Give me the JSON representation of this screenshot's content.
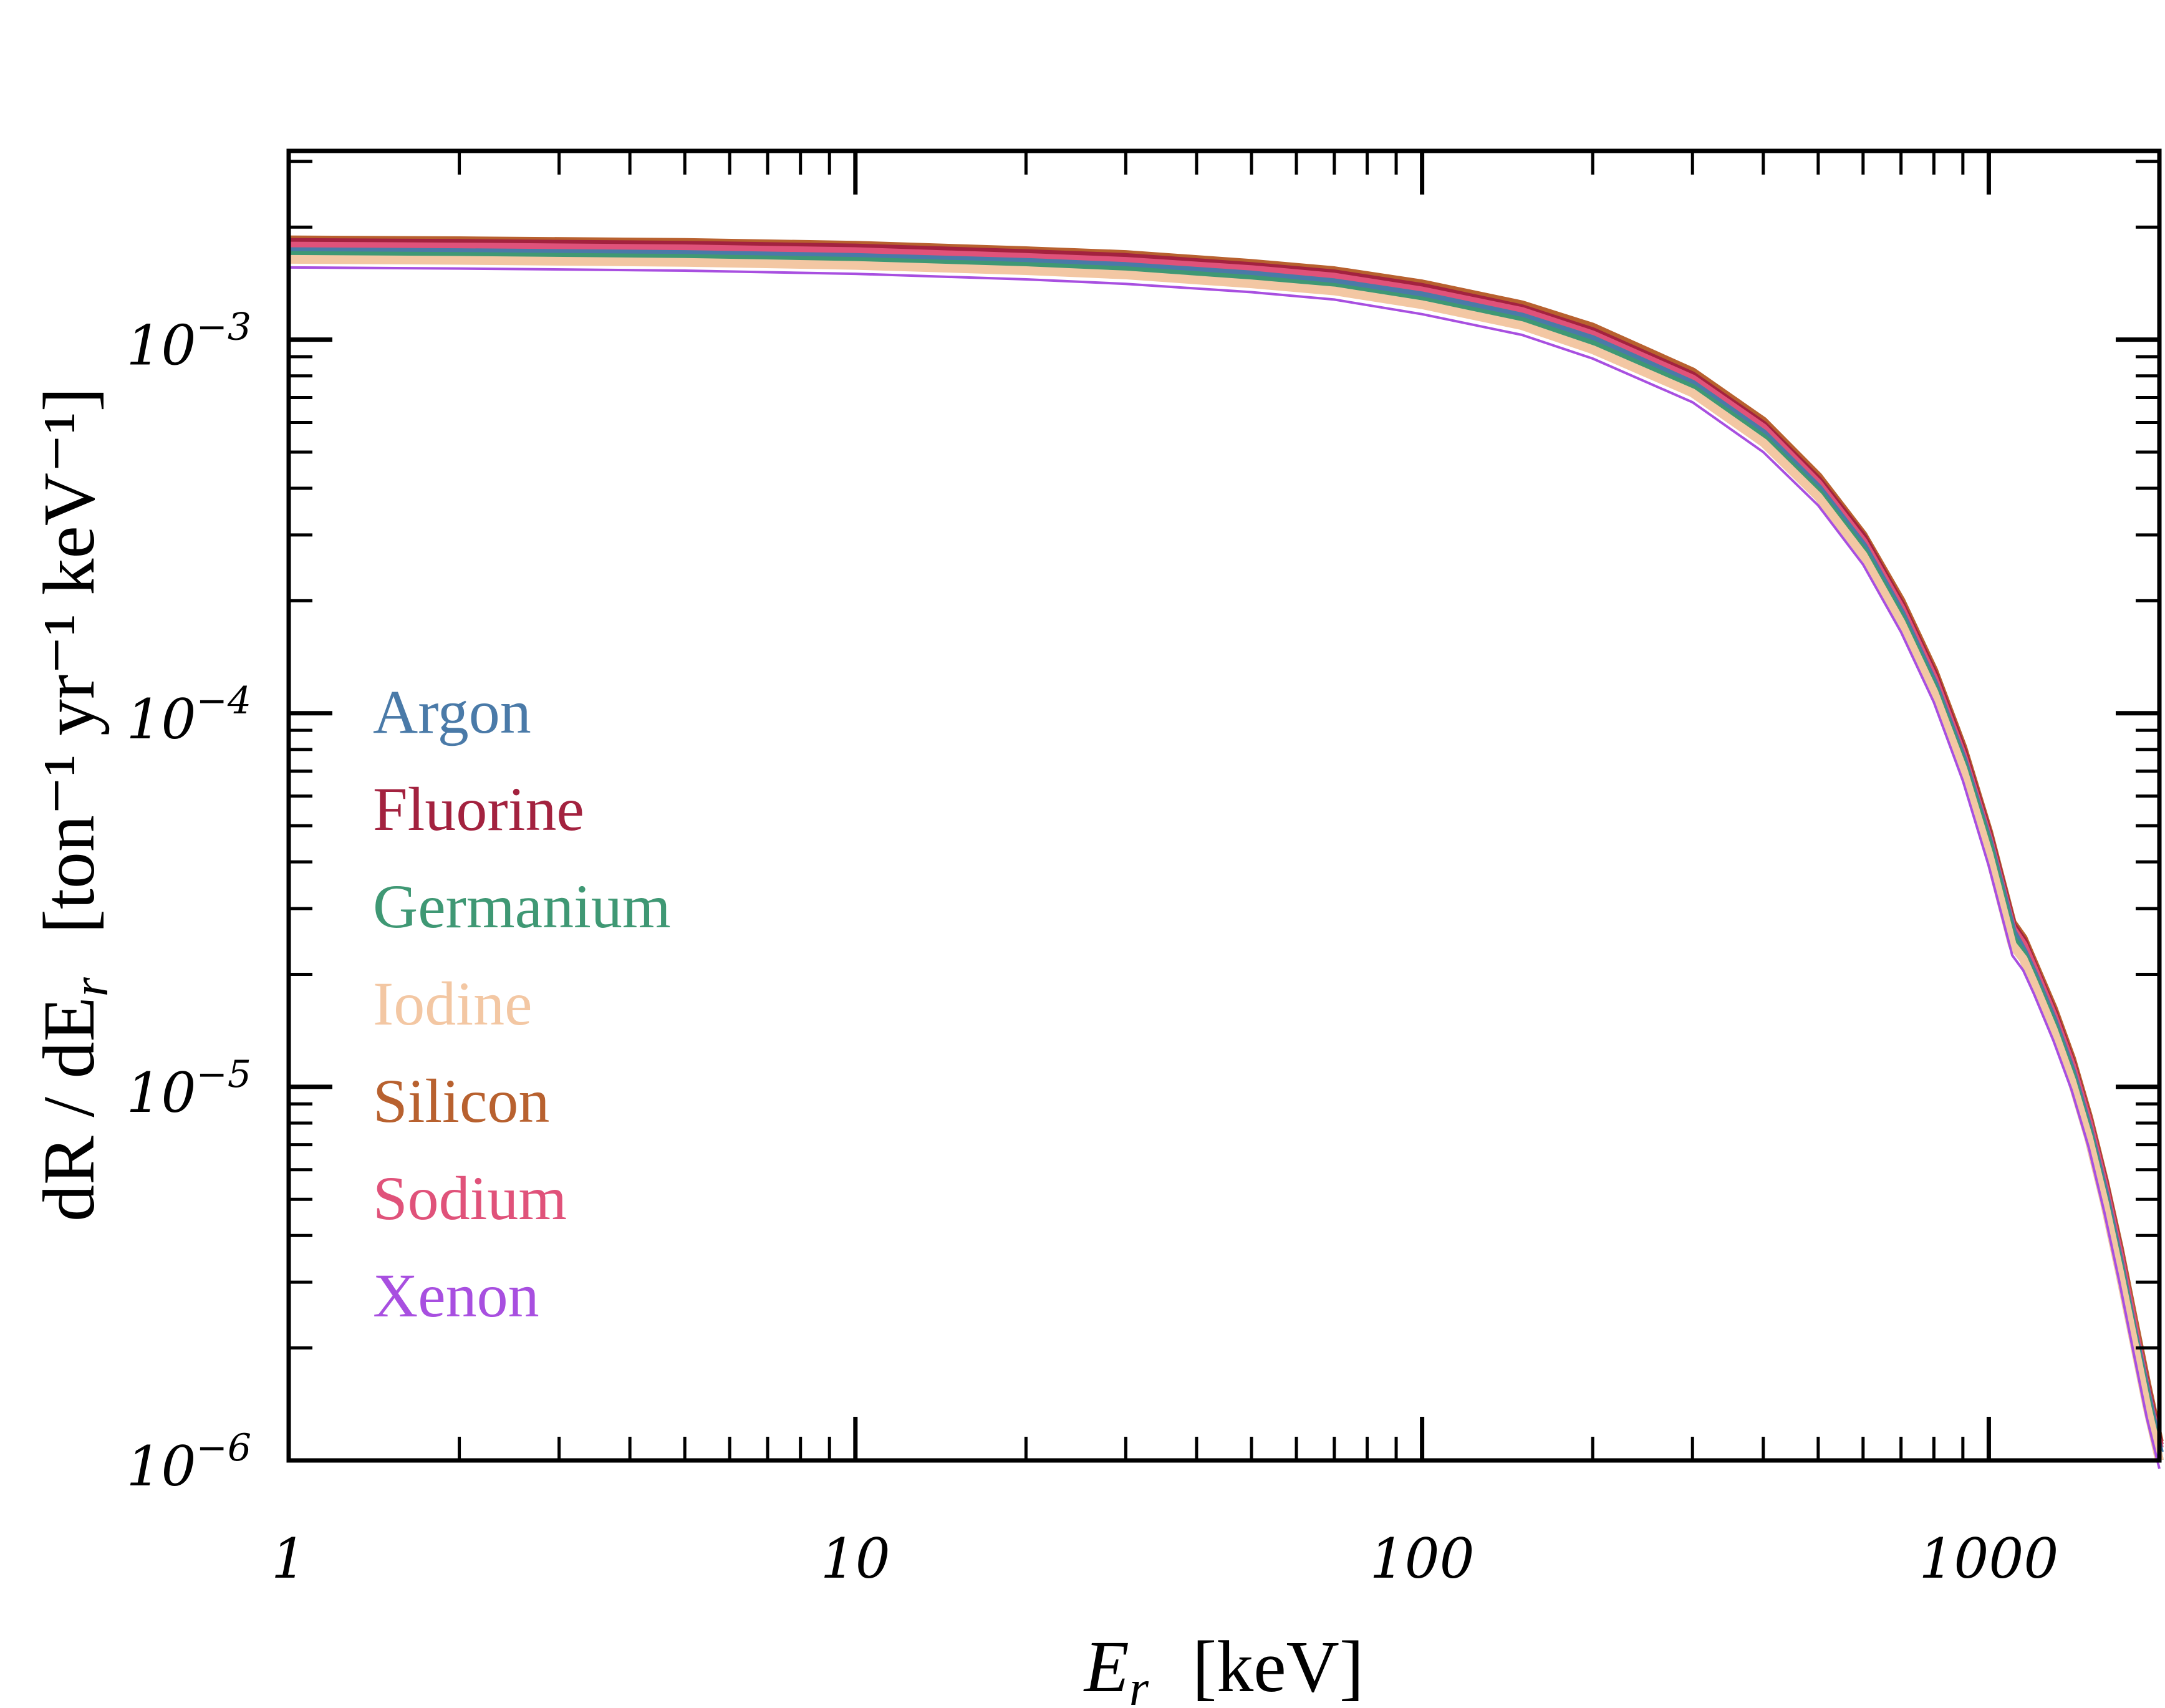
{
  "chart_data": {
    "type": "line",
    "title": "",
    "xlabel": "E_r  [keV]",
    "xlabel_main": "E",
    "xlabel_sub": "r",
    "xlabel_unit": "[keV]",
    "ylabel_left": "dR / dE",
    "ylabel_sub": "r",
    "ylabel_unit": "[ton⁻¹ yr⁻¹ keV⁻¹]",
    "xscale": "log",
    "yscale": "log",
    "xlim": [
      1,
      2000
    ],
    "ylim": [
      1e-06,
      0.0032
    ],
    "x_ticks": [
      {
        "value": 1,
        "label": "1"
      },
      {
        "value": 10,
        "label": "10"
      },
      {
        "value": 100,
        "label": "100"
      },
      {
        "value": 1000,
        "label": "1000"
      }
    ],
    "y_ticks": [
      {
        "value": 0.001,
        "base": "10",
        "exp": "−3"
      },
      {
        "value": 0.0001,
        "base": "10",
        "exp": "−4"
      },
      {
        "value": 1e-05,
        "base": "10",
        "exp": "−5"
      },
      {
        "value": 1e-06,
        "base": "10",
        "exp": "−6"
      }
    ],
    "x": [
      1,
      2,
      5,
      10,
      20,
      30,
      50,
      70,
      100,
      150,
      200,
      300,
      400,
      500,
      600,
      700,
      800,
      900,
      1000,
      1100,
      1150,
      1200,
      1300,
      1400,
      1500,
      1600,
      1700,
      1800,
      1900,
      2000
    ],
    "series": [
      {
        "name": "Argon",
        "color": "#4a7aa8",
        "values": [
          0.00172,
          0.00171,
          0.00169,
          0.00166,
          0.00161,
          0.00157,
          0.00149,
          0.00142,
          0.00131,
          0.00115,
          0.001,
          0.00076,
          0.00056,
          0.0004,
          0.00028,
          0.000185,
          0.00012,
          7.5e-05,
          4.5e-05,
          2.6e-05,
          2.3e-05,
          2e-05,
          1.5e-05,
          1.1e-05,
          7.7e-06,
          5.2e-06,
          3.4e-06,
          2.2e-06,
          1.5e-06,
          1.05e-06
        ]
      },
      {
        "name": "Fluorine",
        "color": "#a3223f",
        "values": [
          0.00182,
          0.00181,
          0.00179,
          0.00176,
          0.0017,
          0.00166,
          0.00157,
          0.0015,
          0.00138,
          0.00121,
          0.00105,
          0.0008,
          0.00059,
          0.00042,
          0.000295,
          0.000195,
          0.000127,
          7.9e-05,
          4.7e-05,
          2.7e-05,
          2.45e-05,
          2.1e-05,
          1.58e-05,
          1.16e-05,
          8.1e-06,
          5.5e-06,
          3.6e-06,
          2.3e-06,
          1.55e-06,
          1.1e-06
        ]
      },
      {
        "name": "Germanium",
        "color": "#3f9874",
        "values": [
          0.00168,
          0.00167,
          0.00165,
          0.00162,
          0.00157,
          0.00153,
          0.00145,
          0.00138,
          0.00127,
          0.00112,
          0.00097,
          0.00074,
          0.000545,
          0.00039,
          0.000272,
          0.00018,
          0.000117,
          7.3e-05,
          4.4e-05,
          2.5e-05,
          2.25e-05,
          1.95e-05,
          1.46e-05,
          1.07e-05,
          7.5e-06,
          5e-06,
          3.3e-06,
          2.15e-06,
          1.45e-06,
          1e-06
        ]
      },
      {
        "name": "Iodine",
        "color": "#f3c7a3",
        "values": [
          0.00164,
          0.00163,
          0.00161,
          0.00158,
          0.00153,
          0.00149,
          0.00141,
          0.00135,
          0.00124,
          0.00109,
          0.00094,
          0.00072,
          0.00053,
          0.00038,
          0.000265,
          0.000175,
          0.000114,
          7.1e-05,
          4.2e-05,
          2.4e-05,
          2.2e-05,
          1.9e-05,
          1.42e-05,
          1.04e-05,
          7.3e-06,
          4.9e-06,
          3.2e-06,
          2.1e-06,
          1.4e-06,
          1e-06
        ]
      },
      {
        "name": "Silicon",
        "color": "#b8612f",
        "values": [
          0.00185,
          0.00184,
          0.00182,
          0.00179,
          0.00173,
          0.00169,
          0.0016,
          0.00153,
          0.00141,
          0.00124,
          0.00108,
          0.00082,
          0.000605,
          0.00043,
          0.0003,
          0.0002,
          0.00013,
          8.1e-05,
          4.8e-05,
          2.75e-05,
          2.5e-05,
          2.15e-05,
          1.62e-05,
          1.19e-05,
          8.3e-06,
          5.6e-06,
          3.7e-06,
          2.4e-06,
          1.6e-06,
          1.12e-06
        ]
      },
      {
        "name": "Sodium",
        "color": "#e0527a",
        "values": [
          0.00178,
          0.00177,
          0.00175,
          0.00172,
          0.00166,
          0.00162,
          0.00154,
          0.00147,
          0.00135,
          0.00119,
          0.00103,
          0.000785,
          0.00058,
          0.000412,
          0.000288,
          0.000191,
          0.000124,
          7.7e-05,
          4.6e-05,
          2.65e-05,
          2.4e-05,
          2.07e-05,
          1.55e-05,
          1.14e-05,
          8e-06,
          5.4e-06,
          3.55e-06,
          2.3e-06,
          1.52e-06,
          1.08e-06
        ]
      },
      {
        "name": "Xenon",
        "color": "#a84fe0",
        "values": [
          0.00156,
          0.00155,
          0.00153,
          0.0015,
          0.00145,
          0.00141,
          0.00134,
          0.00128,
          0.00117,
          0.00103,
          0.00089,
          0.00068,
          0.0005,
          0.00036,
          0.00025,
          0.000165,
          0.000107,
          6.6e-05,
          3.9e-05,
          2.25e-05,
          2.05e-05,
          1.78e-05,
          1.33e-05,
          9.8e-06,
          6.9e-06,
          4.6e-06,
          3e-06,
          1.95e-06,
          1.3e-06,
          9.5e-07
        ]
      }
    ],
    "legend_position": "left-middle",
    "grid": false
  }
}
